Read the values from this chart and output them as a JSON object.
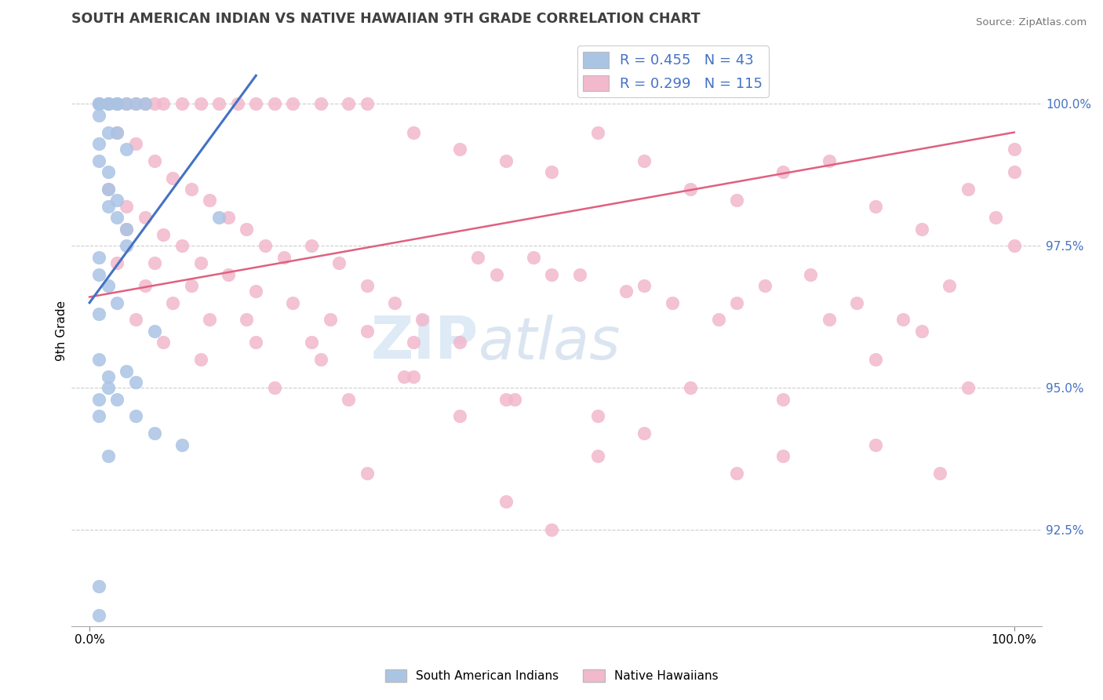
{
  "title": "SOUTH AMERICAN INDIAN VS NATIVE HAWAIIAN 9TH GRADE CORRELATION CHART",
  "source": "Source: ZipAtlas.com",
  "ylabel": "9th Grade",
  "r_blue": 0.455,
  "n_blue": 43,
  "r_pink": 0.299,
  "n_pink": 115,
  "xlim": [
    -2.0,
    103.0
  ],
  "ylim": [
    90.8,
    101.2
  ],
  "yticks": [
    92.5,
    95.0,
    97.5,
    100.0
  ],
  "ytick_labels": [
    "92.5%",
    "95.0%",
    "97.5%",
    "100.0%"
  ],
  "xtick_labels": [
    "0.0%",
    "100.0%"
  ],
  "xticks": [
    0,
    100
  ],
  "blue_color": "#aac4e4",
  "pink_color": "#f2b8cc",
  "blue_line_color": "#4472c4",
  "pink_line_color": "#e06080",
  "right_axis_color": "#4472c4",
  "title_color": "#404040",
  "watermark1": "ZIP",
  "watermark2": "atlas",
  "legend_label_blue": "South American Indians",
  "legend_label_pink": "Native Hawaiians",
  "blue_line_x": [
    0,
    18
  ],
  "blue_line_y": [
    96.5,
    100.5
  ],
  "pink_line_x": [
    0,
    100
  ],
  "pink_line_y": [
    96.6,
    99.5
  ],
  "blue_scatter_x": [
    1,
    1,
    2,
    2,
    3,
    3,
    4,
    5,
    6,
    1,
    1,
    2,
    2,
    3,
    3,
    4,
    4,
    1,
    1,
    2,
    3,
    1,
    2,
    3,
    5,
    7,
    10,
    14,
    1,
    1,
    2,
    1,
    1,
    2,
    4,
    5,
    7,
    1,
    2,
    3,
    1,
    2,
    4
  ],
  "blue_scatter_y": [
    100.0,
    100.0,
    100.0,
    100.0,
    100.0,
    100.0,
    100.0,
    100.0,
    100.0,
    99.3,
    99.0,
    98.8,
    98.5,
    98.3,
    98.0,
    97.8,
    97.5,
    97.3,
    97.0,
    96.8,
    96.5,
    95.5,
    95.2,
    94.8,
    94.5,
    94.2,
    94.0,
    98.0,
    94.8,
    94.5,
    93.8,
    91.5,
    91.0,
    95.0,
    95.3,
    95.1,
    96.0,
    96.3,
    98.2,
    99.5,
    99.8,
    99.5,
    99.2
  ],
  "pink_scatter_x": [
    1,
    2,
    3,
    4,
    5,
    6,
    7,
    8,
    10,
    12,
    14,
    16,
    18,
    20,
    22,
    25,
    28,
    30,
    35,
    40,
    45,
    50,
    55,
    60,
    65,
    70,
    75,
    80,
    85,
    90,
    95,
    100,
    3,
    5,
    7,
    9,
    11,
    13,
    15,
    17,
    19,
    21,
    24,
    27,
    30,
    33,
    36,
    40,
    44,
    48,
    53,
    58,
    63,
    68,
    73,
    78,
    83,
    88,
    93,
    98,
    2,
    4,
    6,
    8,
    10,
    12,
    15,
    18,
    22,
    26,
    30,
    35,
    42,
    50,
    60,
    70,
    80,
    90,
    100,
    3,
    6,
    9,
    13,
    18,
    25,
    35,
    45,
    55,
    65,
    75,
    85,
    95,
    5,
    8,
    12,
    20,
    28,
    40,
    55,
    70,
    85,
    100,
    4,
    7,
    11,
    17,
    24,
    34,
    46,
    60,
    75,
    92,
    50,
    45,
    30
  ],
  "pink_scatter_y": [
    100.0,
    100.0,
    100.0,
    100.0,
    100.0,
    100.0,
    100.0,
    100.0,
    100.0,
    100.0,
    100.0,
    100.0,
    100.0,
    100.0,
    100.0,
    100.0,
    100.0,
    100.0,
    99.5,
    99.2,
    99.0,
    98.8,
    99.5,
    99.0,
    98.5,
    98.3,
    98.8,
    99.0,
    98.2,
    97.8,
    98.5,
    99.2,
    99.5,
    99.3,
    99.0,
    98.7,
    98.5,
    98.3,
    98.0,
    97.8,
    97.5,
    97.3,
    97.5,
    97.2,
    96.8,
    96.5,
    96.2,
    95.8,
    97.0,
    97.3,
    97.0,
    96.7,
    96.5,
    96.2,
    96.8,
    97.0,
    96.5,
    96.2,
    96.8,
    98.0,
    98.5,
    98.2,
    98.0,
    97.7,
    97.5,
    97.2,
    97.0,
    96.7,
    96.5,
    96.2,
    96.0,
    95.8,
    97.3,
    97.0,
    96.8,
    96.5,
    96.2,
    96.0,
    97.5,
    97.2,
    96.8,
    96.5,
    96.2,
    95.8,
    95.5,
    95.2,
    94.8,
    94.5,
    95.0,
    94.8,
    95.5,
    95.0,
    96.2,
    95.8,
    95.5,
    95.0,
    94.8,
    94.5,
    93.8,
    93.5,
    94.0,
    98.8,
    97.8,
    97.2,
    96.8,
    96.2,
    95.8,
    95.2,
    94.8,
    94.2,
    93.8,
    93.5,
    92.5,
    93.0,
    93.5
  ]
}
